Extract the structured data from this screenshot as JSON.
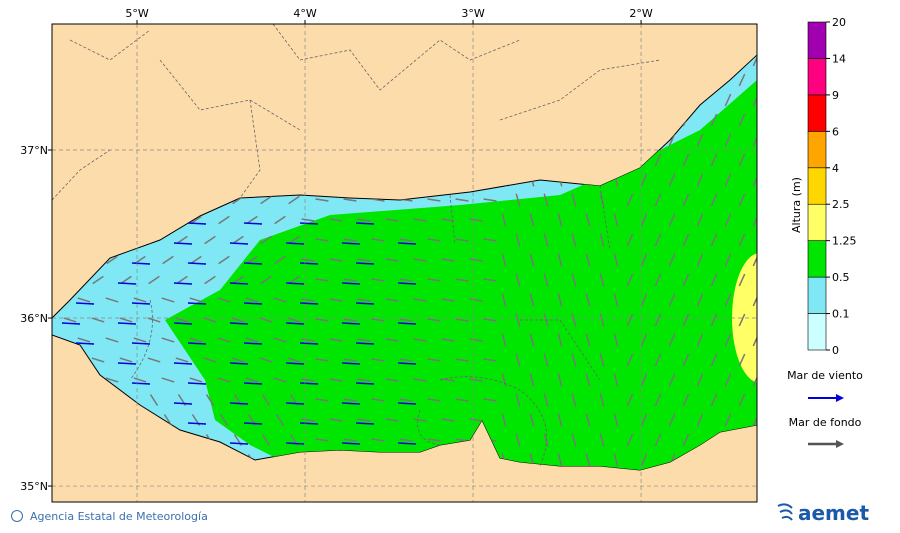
{
  "map": {
    "xlim": [
      -5.506,
      -1.31
    ],
    "ylim": [
      34.905,
      37.75
    ],
    "xticks": [
      {
        "value": -5,
        "label": "5°W"
      },
      {
        "value": -4,
        "label": "4°W"
      },
      {
        "value": -3,
        "label": "3°W"
      },
      {
        "value": -2,
        "label": "2°W"
      }
    ],
    "yticks": [
      {
        "value": 37,
        "label": "37°N"
      },
      {
        "value": 36,
        "label": "36°N"
      },
      {
        "value": 35,
        "label": "35°N"
      }
    ]
  },
  "colorbar": {
    "title": "Altura (m)",
    "ticks": [
      0,
      0.1,
      0.5,
      1.25,
      2.5,
      4,
      6,
      9,
      14,
      20
    ],
    "colors": [
      "#ccffff",
      "#80e8f4",
      "#00e600",
      "#ffff66",
      "#ffd700",
      "#ffa500",
      "#ff0000",
      "#ff0080",
      "#a000b0"
    ]
  },
  "legend": [
    {
      "name": "Mar de viento",
      "color": "#0000dd"
    },
    {
      "name": "Mar de fondo",
      "color": "#555555"
    }
  ],
  "footer": {
    "credit": "Agencia Estatal de Meteorología",
    "logo": "aemet"
  }
}
